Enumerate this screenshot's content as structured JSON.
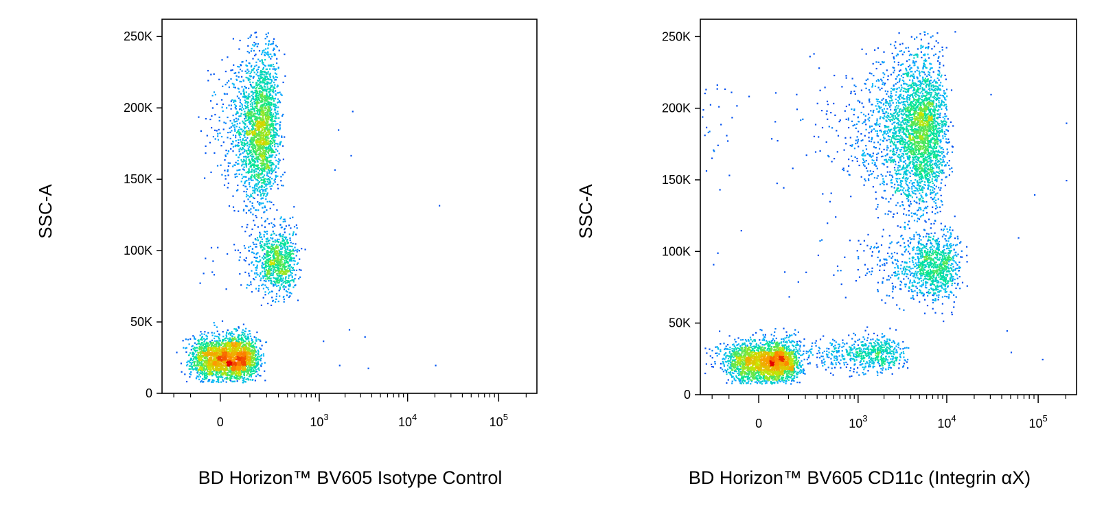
{
  "chart_data": [
    {
      "type": "scatter",
      "plot_style": "flow cytometry pseudocolor density dot plot",
      "xlabel": "BD Horizon™ BV605 Isotype Control",
      "ylabel": "SSC-A",
      "x_scale": "biexponential",
      "y_scale": "linear",
      "ylim": [
        0,
        262144
      ],
      "y_ticks": [
        0,
        50000,
        100000,
        150000,
        200000,
        250000
      ],
      "y_tick_labels": [
        "0",
        "50K",
        "100K",
        "150K",
        "200K",
        "250K"
      ],
      "x_ticks": [
        {
          "value": 0,
          "base": "0",
          "exp": ""
        },
        {
          "value": 1000,
          "base": "10",
          "exp": "3"
        },
        {
          "value": 10000,
          "base": "10",
          "exp": "4"
        },
        {
          "value": 100000,
          "base": "10",
          "exp": "5"
        }
      ],
      "populations": [
        {
          "x": 20,
          "y": 25000,
          "sdx": 55,
          "sdy": 8000,
          "n": 2600
        },
        {
          "x": 150,
          "y": 185000,
          "sdx": 70,
          "sdy": 26000,
          "n": 2300
        },
        {
          "x": 280,
          "y": 93000,
          "sdx": 110,
          "sdy": 12000,
          "n": 900
        }
      ],
      "outliers": [
        [
          1650,
          185000
        ],
        [
          2400,
          198000
        ],
        [
          2300,
          167000
        ],
        [
          1500,
          157000
        ],
        [
          22000,
          132000
        ],
        [
          2200,
          45000
        ],
        [
          3300,
          40000
        ],
        [
          1100,
          37000
        ],
        [
          20000,
          20000
        ],
        [
          1700,
          20000
        ],
        [
          3600,
          18000
        ]
      ],
      "color_scale": [
        "#0000e6",
        "#00b4ff",
        "#00e696",
        "#c8e600",
        "#ff9600",
        "#e60000"
      ]
    },
    {
      "type": "scatter",
      "plot_style": "flow cytometry pseudocolor density dot plot",
      "xlabel": "BD Horizon™ BV605 CD11c (Integrin αX)",
      "ylabel": "SSC-A",
      "x_scale": "biexponential",
      "y_scale": "linear",
      "ylim": [
        0,
        262144
      ],
      "y_ticks": [
        0,
        50000,
        100000,
        150000,
        200000,
        250000
      ],
      "y_tick_labels": [
        "0",
        "50K",
        "100K",
        "150K",
        "200K",
        "250K"
      ],
      "x_ticks": [
        {
          "value": 0,
          "base": "0",
          "exp": ""
        },
        {
          "value": 1000,
          "base": "10",
          "exp": "3"
        },
        {
          "value": 10000,
          "base": "10",
          "exp": "4"
        },
        {
          "value": 100000,
          "base": "10",
          "exp": "5"
        }
      ],
      "populations": [
        {
          "x": 20,
          "y": 23000,
          "sdx": 60,
          "sdy": 7500,
          "n": 2500
        },
        {
          "x": 4500,
          "y": 185000,
          "sdx": 2300,
          "sdy": 27000,
          "n": 3200
        },
        {
          "x": 6500,
          "y": 90000,
          "sdx": 3000,
          "sdy": 12000,
          "n": 1100
        },
        {
          "x": 1200,
          "y": 29000,
          "sdx": 900,
          "sdy": 6000,
          "n": 700
        }
      ],
      "outliers": [
        [
          90000,
          140000
        ],
        [
          60000,
          110000
        ],
        [
          50000,
          30000
        ],
        [
          110000,
          25000
        ],
        [
          200000,
          190000
        ],
        [
          200000,
          150000
        ],
        [
          30000,
          210000
        ],
        [
          45000,
          45000
        ]
      ],
      "color_scale": [
        "#0000e6",
        "#00b4ff",
        "#00e696",
        "#c8e600",
        "#ff9600",
        "#e60000"
      ]
    }
  ]
}
